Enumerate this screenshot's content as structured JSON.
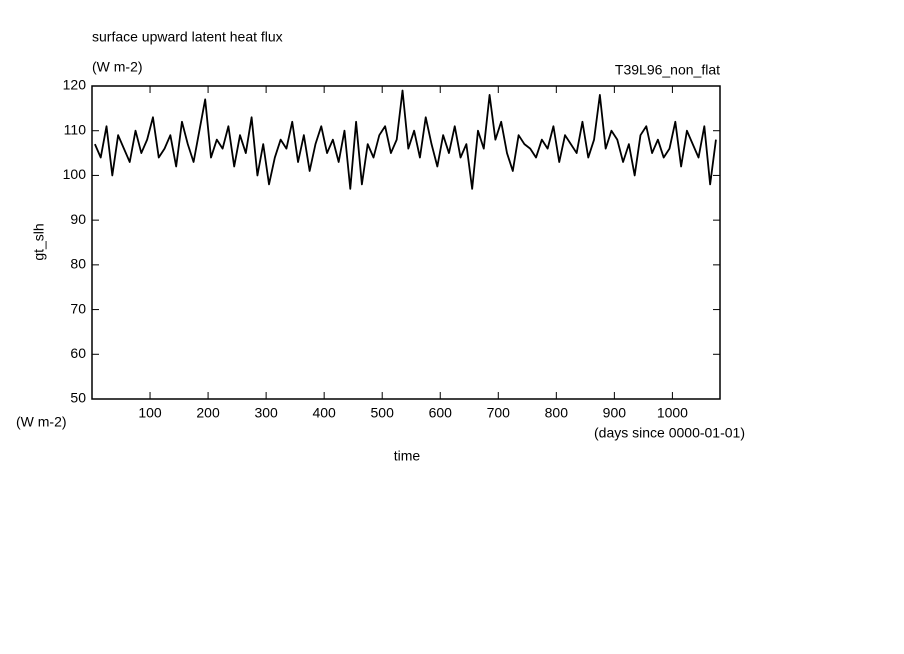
{
  "chart_data": {
    "type": "line",
    "title": "surface upward latent heat flux",
    "subtitle": "(W m-2)",
    "annotation": "T39L96_non_flat",
    "y_label": "gt_slh",
    "y_unit": "(W m-2)",
    "x_label": "time",
    "x_unit": "(days since 0000-01-01)",
    "color": "#000000",
    "x": [
      5,
      15,
      25,
      35,
      45,
      55,
      65,
      75,
      85,
      95,
      105,
      115,
      125,
      135,
      145,
      155,
      165,
      175,
      185,
      195,
      205,
      215,
      225,
      235,
      245,
      255,
      265,
      275,
      285,
      295,
      305,
      315,
      325,
      335,
      345,
      355,
      365,
      375,
      385,
      395,
      405,
      415,
      425,
      435,
      445,
      455,
      465,
      475,
      485,
      495,
      505,
      515,
      525,
      535,
      545,
      555,
      565,
      575,
      585,
      595,
      605,
      615,
      625,
      635,
      645,
      655,
      665,
      675,
      685,
      695,
      705,
      715,
      725,
      735,
      745,
      755,
      765,
      775,
      785,
      795,
      805,
      815,
      825,
      835,
      845,
      855,
      865,
      875,
      885,
      895,
      905,
      915,
      925,
      935,
      945,
      955,
      965,
      975,
      985,
      995,
      1005,
      1015,
      1025,
      1035,
      1045,
      1055,
      1065,
      1075
    ],
    "values": [
      107,
      104,
      111,
      100,
      109,
      106,
      103,
      110,
      105,
      108,
      113,
      104,
      106,
      109,
      102,
      112,
      107,
      103,
      110,
      117,
      104,
      108,
      106,
      111,
      102,
      109,
      105,
      113,
      100,
      107,
      98,
      104,
      108,
      106,
      112,
      103,
      109,
      101,
      107,
      111,
      105,
      108,
      103,
      110,
      97,
      112,
      98,
      107,
      104,
      109,
      111,
      105,
      108,
      119,
      106,
      110,
      104,
      113,
      107,
      102,
      109,
      105,
      111,
      104,
      107,
      97,
      110,
      106,
      118,
      108,
      112,
      105,
      101,
      109,
      107,
      106,
      104,
      108,
      106,
      111,
      103,
      109,
      107,
      105,
      112,
      104,
      108,
      118,
      106,
      110,
      108,
      103,
      107,
      100,
      109,
      111,
      105,
      108,
      104,
      106,
      112,
      102,
      110,
      107,
      104,
      111,
      98,
      108
    ],
    "xlim": [
      0,
      1082
    ],
    "ylim": [
      50,
      120
    ],
    "xticks": [
      100,
      200,
      300,
      400,
      500,
      600,
      700,
      800,
      900,
      1000
    ],
    "yticks": [
      50,
      60,
      70,
      80,
      90,
      100,
      110,
      120
    ]
  }
}
